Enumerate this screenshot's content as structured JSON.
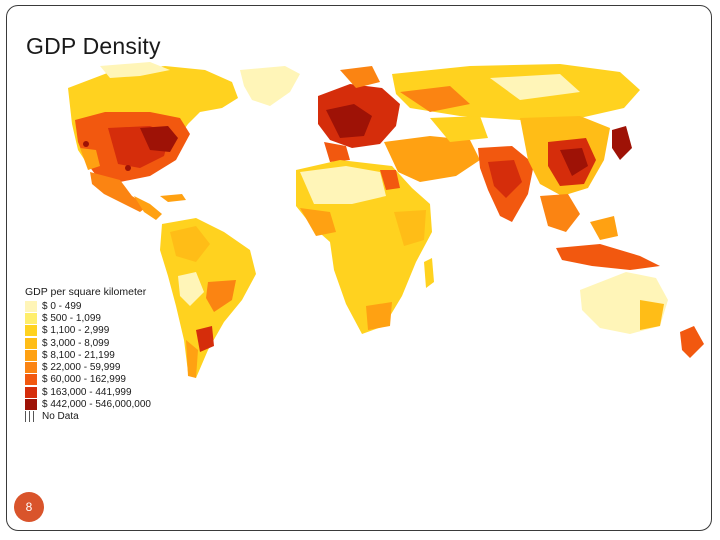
{
  "slide": {
    "title": "GDP Density",
    "page_number": "8",
    "accent_color": "#d9542b"
  },
  "legend": {
    "title": "GDP per square kilometer",
    "items": [
      {
        "label": "$ 0 - 499",
        "color": "#fff5b8"
      },
      {
        "label": "$ 500 - 1,099",
        "color": "#ffee6b"
      },
      {
        "label": "$ 1,100 - 2,999",
        "color": "#ffd21f"
      },
      {
        "label": "$ 3,000 - 8,099",
        "color": "#ffbd17"
      },
      {
        "label": "$ 8,100 - 21,199",
        "color": "#ffa112"
      },
      {
        "label": "$ 22,000 - 59,999",
        "color": "#fb8412"
      },
      {
        "label": "$ 60,000 - 162,999",
        "color": "#f2580f"
      },
      {
        "label": "$ 163,000 - 441,999",
        "color": "#d52d0b"
      },
      {
        "label": "$ 442,000 - 546,000,000",
        "color": "#9e1206"
      },
      {
        "label": "No Data",
        "color": "#ffffff"
      }
    ]
  }
}
